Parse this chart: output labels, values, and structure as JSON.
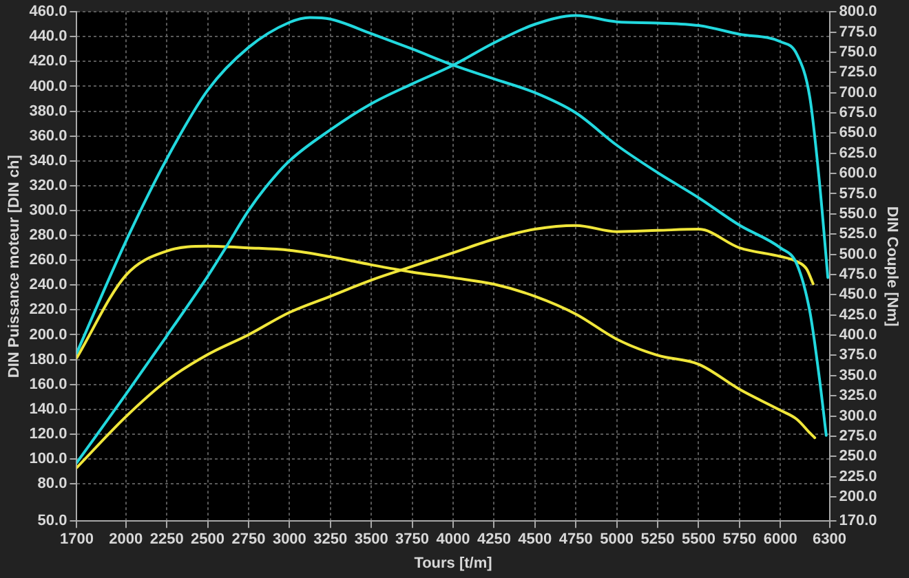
{
  "chart_data": {
    "type": "line",
    "xlabel": "Tours [t/m]",
    "ylabel": "DIN Puissance moteur [DIN ch]",
    "y2label": "DIN Couple [Nm]",
    "xlim": [
      1700,
      6300
    ],
    "xticks": [
      1700,
      2000,
      2250,
      2500,
      2750,
      3000,
      3250,
      3500,
      3750,
      4000,
      4250,
      4500,
      4750,
      5000,
      5250,
      5500,
      5750,
      6000,
      6300
    ],
    "ylim": [
      50,
      460
    ],
    "yticks": [
      {
        "value": 50,
        "label": "50.0"
      },
      {
        "value": 80,
        "label": "80.0"
      },
      {
        "value": 100,
        "label": "100.0"
      },
      {
        "value": 120,
        "label": "120.0"
      },
      {
        "value": 140,
        "label": "140.0"
      },
      {
        "value": 160,
        "label": "160.0"
      },
      {
        "value": 180,
        "label": "180.0"
      },
      {
        "value": 200,
        "label": "200.0"
      },
      {
        "value": 220,
        "label": "220.0"
      },
      {
        "value": 240,
        "label": "240.0"
      },
      {
        "value": 260,
        "label": "260.0"
      },
      {
        "value": 280,
        "label": "280.0"
      },
      {
        "value": 300,
        "label": "300.0"
      },
      {
        "value": 320,
        "label": "320.0"
      },
      {
        "value": 340,
        "label": "340.0"
      },
      {
        "value": 360,
        "label": "360.0"
      },
      {
        "value": 380,
        "label": "380.0"
      },
      {
        "value": 400,
        "label": "400.0"
      },
      {
        "value": 420,
        "label": "420.0"
      },
      {
        "value": 440,
        "label": "440.0"
      },
      {
        "value": 460,
        "label": "460.0"
      }
    ],
    "y2lim": [
      170,
      800
    ],
    "y2ticks": [
      {
        "value": 170,
        "label": "170.0"
      },
      {
        "value": 200,
        "label": "200.0"
      },
      {
        "value": 225,
        "label": "225.0"
      },
      {
        "value": 250,
        "label": "250.0"
      },
      {
        "value": 275,
        "label": "275.0"
      },
      {
        "value": 300,
        "label": "300.0"
      },
      {
        "value": 325,
        "label": "325.0"
      },
      {
        "value": 350,
        "label": "350.0"
      },
      {
        "value": 375,
        "label": "375.0"
      },
      {
        "value": 400,
        "label": "400.0"
      },
      {
        "value": 425,
        "label": "425.0"
      },
      {
        "value": 450,
        "label": "450.0"
      },
      {
        "value": 475,
        "label": "475.0"
      },
      {
        "value": 500,
        "label": "500.0"
      },
      {
        "value": 525,
        "label": "525.0"
      },
      {
        "value": 550,
        "label": "550.0"
      },
      {
        "value": 575,
        "label": "575.0"
      },
      {
        "value": 600,
        "label": "600.0"
      },
      {
        "value": 625,
        "label": "625.0"
      },
      {
        "value": 650,
        "label": "650.0"
      },
      {
        "value": 675,
        "label": "675.0"
      },
      {
        "value": 700,
        "label": "700.0"
      },
      {
        "value": 725,
        "label": "725.0"
      },
      {
        "value": 750,
        "label": "750.0"
      },
      {
        "value": 775,
        "label": "775.0"
      },
      {
        "value": 800,
        "label": "800.0"
      }
    ],
    "grid": true,
    "legend": false,
    "marker": "none",
    "line_style": "solid",
    "series": [
      {
        "color": "#22d8de",
        "x": [
          1700,
          2000,
          2250,
          2500,
          2610,
          2750,
          2850,
          3000,
          3250,
          3500,
          3750,
          4000,
          4250,
          4500,
          4750,
          5000,
          5250,
          5500,
          5750,
          6000,
          6100,
          6180,
          6240,
          6290
        ],
        "values": [
          97,
          152,
          199,
          247,
          270,
          300,
          318,
          340,
          365,
          386,
          402,
          417,
          435,
          450,
          457,
          452,
          451,
          449,
          442,
          436,
          426,
          391,
          321,
          246
        ]
      },
      {
        "color": "#22d8de",
        "axis": "y2",
        "x": [
          1700,
          2000,
          2250,
          2500,
          2750,
          3000,
          3125,
          3250,
          3500,
          3750,
          4000,
          4250,
          4500,
          4750,
          5000,
          5250,
          5500,
          5750,
          6000,
          6100,
          6180,
          6240,
          6280
        ],
        "values": [
          378,
          516,
          618,
          703,
          756,
          787,
          793,
          791,
          773,
          754,
          734,
          717,
          700,
          675,
          635,
          601,
          570,
          536,
          508,
          488,
          429,
          344,
          276
        ]
      },
      {
        "color": "#f0e63a",
        "x": [
          1700,
          2000,
          2250,
          2500,
          2750,
          3000,
          3250,
          3500,
          3750,
          4000,
          4250,
          4500,
          4750,
          5000,
          5250,
          5500,
          5750,
          6000,
          6100,
          6160,
          6200
        ],
        "values": [
          93,
          134,
          163,
          184,
          200,
          218,
          231,
          244,
          255,
          266,
          277,
          285,
          288,
          283,
          284,
          285,
          270,
          263,
          259,
          253,
          241
        ]
      },
      {
        "color": "#f0e63a",
        "axis": "y2",
        "x": [
          1700,
          2000,
          2250,
          2500,
          2750,
          3000,
          3250,
          3500,
          3750,
          4000,
          4250,
          4500,
          4750,
          5000,
          5250,
          5500,
          5750,
          6000,
          6100,
          6180,
          6210
        ],
        "values": [
          372,
          474,
          504,
          510,
          508,
          505,
          497,
          487,
          478,
          471,
          463,
          448,
          426,
          395,
          375,
          364,
          333,
          307,
          296,
          279,
          273
        ]
      }
    ]
  }
}
